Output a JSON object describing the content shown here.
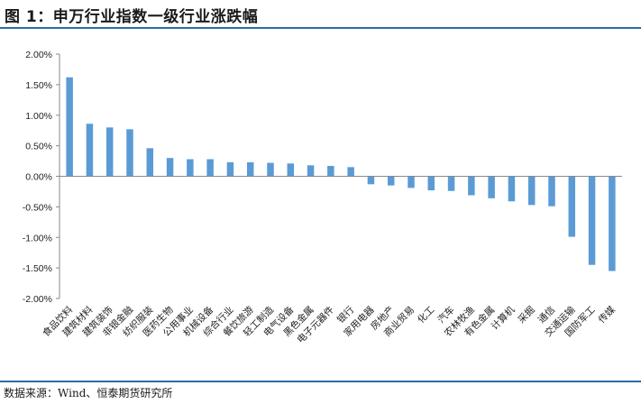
{
  "header": {
    "title": "图 1：申万行业指数一级行业涨跌幅"
  },
  "footer": {
    "source": "数据来源：Wind、恒泰期货研究所"
  },
  "colors": {
    "bar": "#5b9bd5",
    "rule": "#2b6aa9",
    "axis": "#8a8a8a"
  },
  "chart_data": {
    "type": "bar",
    "title": "",
    "xlabel": "",
    "ylabel": "",
    "ylim": [
      -2.0,
      2.0
    ],
    "y_ticks": [
      2.0,
      1.5,
      1.0,
      0.5,
      0.0,
      -0.5,
      -1.0,
      -1.5,
      -2.0
    ],
    "y_tick_labels": [
      "2.00%",
      "1.50%",
      "1.00%",
      "0.50%",
      "0.00%",
      "-0.50%",
      "-1.00%",
      "-1.50%",
      "-2.00%"
    ],
    "grid": false,
    "legend": "none",
    "categories": [
      "食品饮料",
      "建筑材料",
      "建筑装饰",
      "非银金融",
      "纺织服装",
      "医药生物",
      "公用事业",
      "机械设备",
      "综合行业",
      "餐饮旅游",
      "轻工制造",
      "电气设备",
      "黑色金属",
      "电子元器件",
      "银行",
      "家用电器",
      "房地产",
      "商业贸易",
      "化工",
      "汽车",
      "农林牧渔",
      "有色金属",
      "计算机",
      "采掘",
      "通信",
      "交通运输",
      "国防军工",
      "传媒"
    ],
    "values": [
      1.62,
      0.86,
      0.8,
      0.77,
      0.46,
      0.3,
      0.28,
      0.28,
      0.23,
      0.23,
      0.22,
      0.21,
      0.18,
      0.17,
      0.15,
      -0.13,
      -0.15,
      -0.19,
      -0.23,
      -0.24,
      -0.31,
      -0.36,
      -0.41,
      -0.47,
      -0.49,
      -0.99,
      -1.45,
      -1.55
    ]
  }
}
